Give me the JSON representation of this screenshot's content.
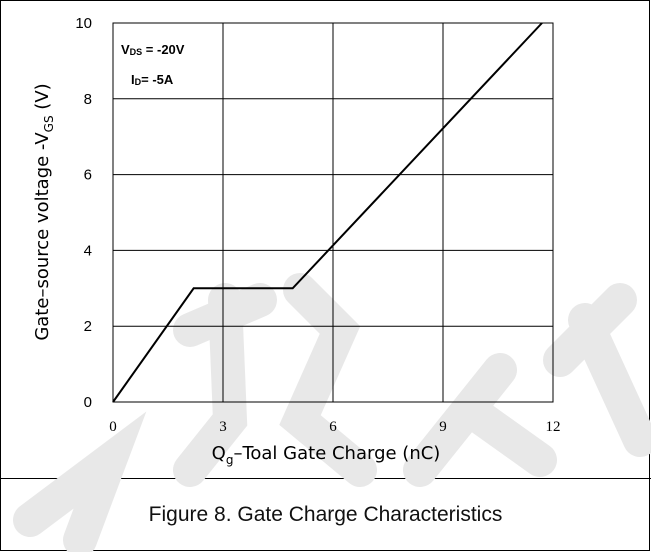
{
  "chart_data": {
    "type": "line",
    "xlabel_main": "Q",
    "xlabel_sub": "g",
    "xlabel_rest": "–Toal Gate Charge  (nC)",
    "ylabel_main": "Gate–source voltage -V",
    "ylabel_sub": "GS",
    "ylabel_rest": " (V)",
    "xlim": [
      0,
      12
    ],
    "ylim": [
      0,
      10
    ],
    "x_ticks": [
      "0",
      "3",
      "6",
      "9",
      "12"
    ],
    "y_ticks": [
      "0",
      "2",
      "4",
      "6",
      "8",
      "10"
    ],
    "grid": true,
    "annotations": [
      {
        "main": "V",
        "sub": "DS",
        "rest": " = -20V"
      },
      {
        "main": "I",
        "sub": "D",
        "rest": "= -5A"
      }
    ],
    "series": [
      {
        "x": [
          0,
          2.2,
          4.9,
          11.7
        ],
        "y": [
          0,
          3.0,
          3.0,
          10.0
        ]
      }
    ]
  },
  "caption": "Figure 8. Gate Charge Characteristics",
  "colors": {
    "line": "#000000",
    "grid": "#000000",
    "text": "#000000",
    "watermark": "#e6e6e6"
  }
}
